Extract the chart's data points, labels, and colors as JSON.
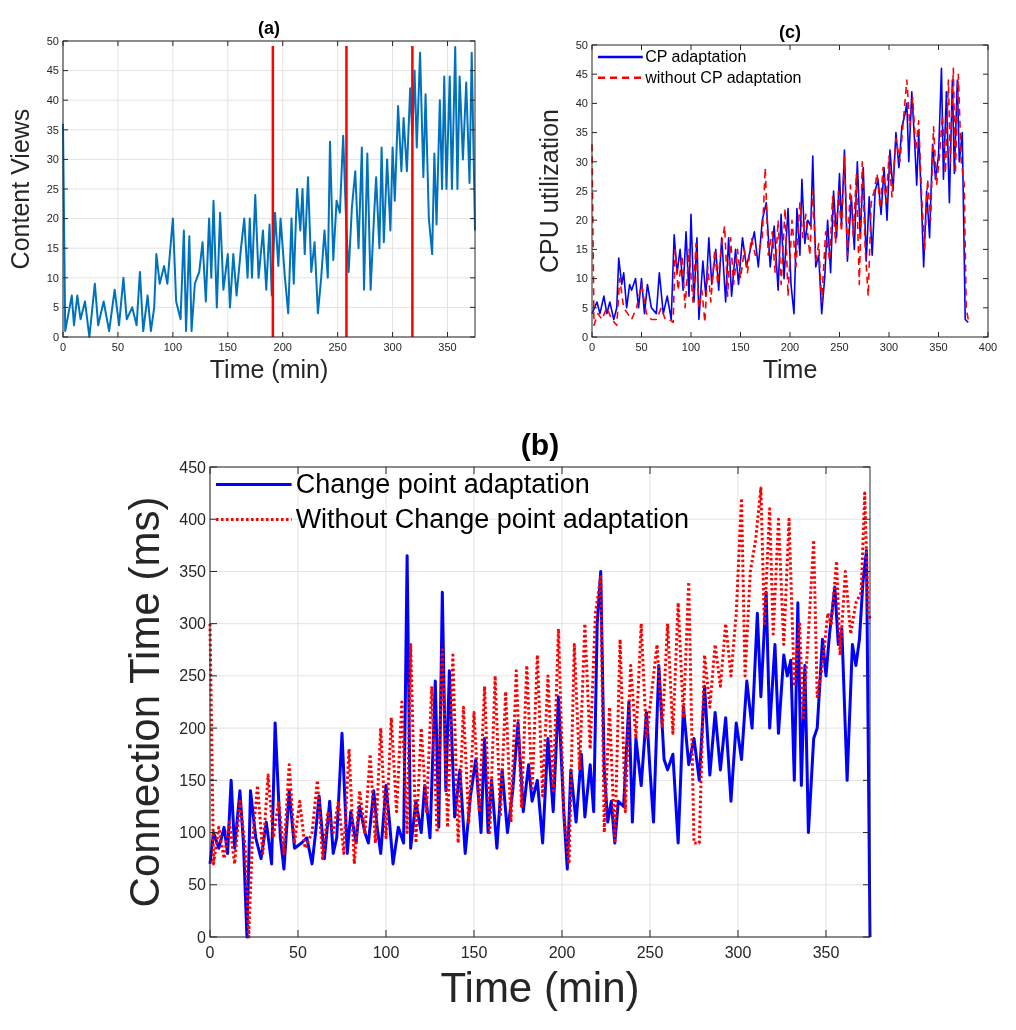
{
  "chart_data": [
    {
      "type": "line",
      "title": "(a)",
      "xlabel": "Time (min)",
      "ylabel": "Content Views",
      "xlim": [
        0,
        375
      ],
      "ylim": [
        0,
        50
      ],
      "xticks": [
        0,
        50,
        100,
        150,
        200,
        250,
        300,
        350
      ],
      "yticks": [
        0,
        5,
        10,
        15,
        20,
        25,
        30,
        35,
        40,
        45,
        50
      ],
      "grid": true,
      "legend": false,
      "ref_lines": [
        {
          "axis": "x",
          "value": 191,
          "color": "#ff0000"
        },
        {
          "axis": "x",
          "value": 258,
          "color": "#ff0000"
        },
        {
          "axis": "x",
          "value": 318,
          "color": "#ff0000"
        }
      ],
      "series": [
        {
          "color": "#0072bd",
          "line_style": "solid",
          "x": [
            0,
            2,
            5,
            8,
            10,
            13,
            16,
            20,
            24,
            29,
            32,
            37,
            42,
            47,
            51,
            55,
            58,
            63,
            67,
            70,
            73,
            77,
            80,
            83,
            85,
            88,
            92,
            95,
            100,
            103,
            107,
            110,
            112,
            115,
            117,
            120,
            124,
            127,
            130,
            133,
            135,
            137,
            140,
            143,
            146,
            150,
            152,
            155,
            158,
            162,
            165,
            168,
            170,
            172,
            175,
            178,
            182,
            185,
            188,
            190,
            193,
            196,
            198,
            202,
            205,
            208,
            210,
            213,
            216,
            218,
            220,
            223,
            226,
            229,
            232,
            235,
            238,
            241,
            243,
            246,
            249,
            252,
            255,
            258,
            260,
            263,
            266,
            269,
            272,
            274,
            277,
            280,
            283,
            285,
            288,
            290,
            292,
            295,
            298,
            300,
            302,
            305,
            308,
            310,
            313,
            316,
            318,
            320,
            322,
            325,
            328,
            330,
            333,
            336,
            338,
            340,
            343,
            345,
            347,
            349,
            352,
            354,
            357,
            359,
            361,
            364,
            367,
            370,
            372,
            375
          ],
          "values": [
            36,
            1,
            4,
            7,
            2,
            7,
            3,
            6,
            0,
            9,
            2,
            6,
            1,
            8,
            2,
            10,
            3,
            5,
            2,
            11,
            1,
            7,
            1,
            5,
            14,
            9,
            12,
            9,
            20,
            6,
            3,
            18,
            1,
            17,
            1,
            9,
            11,
            16,
            6,
            20,
            10,
            23,
            5,
            21,
            8,
            14,
            5,
            14,
            7,
            15,
            20,
            10,
            20,
            10,
            24,
            10,
            18,
            8,
            19,
            7,
            21,
            12,
            20,
            10,
            4,
            20,
            9,
            25,
            18,
            25,
            14,
            27,
            11,
            16,
            4,
            10,
            18,
            10,
            33,
            13,
            23,
            21,
            34,
            18,
            11,
            22,
            28,
            15,
            32,
            8,
            31,
            8,
            20,
            27,
            15,
            32,
            16,
            30,
            18,
            32,
            23,
            39,
            28,
            37,
            28,
            42,
            34,
            45,
            32,
            48,
            27,
            41,
            20,
            14,
            31,
            19,
            40,
            25,
            44,
            25,
            44,
            25,
            49,
            25,
            44,
            30,
            43,
            26,
            48,
            18
          ]
        }
      ]
    },
    {
      "type": "line",
      "title": "(c)",
      "xlabel": "Time",
      "ylabel": "CPU utilization",
      "xlim": [
        0,
        400
      ],
      "ylim": [
        0,
        50
      ],
      "xticks": [
        0,
        50,
        100,
        150,
        200,
        250,
        300,
        350,
        400
      ],
      "yticks": [
        0,
        5,
        10,
        15,
        20,
        25,
        30,
        35,
        40,
        45,
        50
      ],
      "grid": false,
      "legend": "top left",
      "series": [
        {
          "name": "CP adaptation",
          "color": "#0000ff",
          "line_style": "solid",
          "x": [
            0,
            5,
            8,
            12,
            15,
            18,
            22,
            25,
            27,
            30,
            32,
            35,
            38,
            40,
            44,
            47,
            50,
            53,
            56,
            60,
            65,
            68,
            72,
            76,
            80,
            83,
            86,
            89,
            92,
            95,
            98,
            100,
            103,
            106,
            108,
            112,
            115,
            118,
            121,
            125,
            128,
            131,
            135,
            138,
            141,
            145,
            148,
            152,
            156,
            160,
            164,
            168,
            172,
            176,
            180,
            184,
            188,
            191,
            194,
            198,
            201,
            204,
            207,
            210,
            212,
            215,
            218,
            221,
            223,
            226,
            229,
            232,
            235,
            238,
            241,
            244,
            247,
            250,
            252,
            255,
            258,
            262,
            265,
            268,
            271,
            274,
            277,
            280,
            283,
            286,
            289,
            292,
            295,
            298,
            301,
            304,
            307,
            310,
            313,
            316,
            318,
            320,
            323,
            326,
            328,
            330,
            333,
            335,
            338,
            341,
            344,
            347,
            350,
            353,
            355,
            358,
            361,
            364,
            366,
            369,
            371,
            374,
            377,
            380
          ],
          "values": [
            4,
            6,
            4,
            7,
            4,
            6,
            3,
            5,
            13.5,
            9,
            11,
            5,
            9,
            8,
            10,
            5,
            10,
            4,
            9,
            5,
            4,
            11,
            4,
            7,
            3,
            17.5,
            11,
            15,
            8,
            18,
            7,
            21,
            6,
            17,
            3,
            13,
            7,
            17,
            9,
            15,
            8,
            17,
            6,
            17,
            7,
            15,
            9,
            17,
            12,
            15,
            18,
            12,
            20,
            23,
            12,
            19,
            8,
            21,
            10,
            22,
            9,
            4,
            22,
            14,
            27,
            16,
            20,
            19,
            31,
            12,
            14,
            4,
            10,
            20,
            11,
            25,
            17,
            28,
            19,
            32,
            13,
            24,
            15,
            30,
            17,
            29,
            13,
            24,
            14,
            25,
            27,
            21,
            29,
            20,
            32,
            25,
            35,
            29,
            36,
            38,
            40,
            30,
            42,
            33,
            26,
            35,
            22,
            12,
            25,
            17,
            33,
            27,
            31,
            46,
            27,
            42,
            23,
            44,
            28,
            44,
            30,
            35,
            3,
            2.5
          ]
        },
        {
          "name": "without CP adaptation",
          "color": "#ff0000",
          "line_style": "dashed",
          "x": [
            0,
            2,
            6,
            10,
            15,
            20,
            25,
            28,
            32,
            36,
            40,
            45,
            50,
            55,
            60,
            65,
            70,
            74,
            78,
            82,
            84,
            87,
            91,
            94,
            98,
            102,
            105,
            108,
            111,
            114,
            117,
            120,
            124,
            127,
            131,
            134,
            137,
            140,
            143,
            147,
            150,
            154,
            157,
            161,
            165,
            169,
            172,
            175,
            178,
            182,
            185,
            188,
            191,
            195,
            198,
            202,
            206,
            210,
            213,
            216,
            220,
            223,
            226,
            229,
            232,
            236,
            240,
            243,
            246,
            249,
            252,
            255,
            258,
            261,
            264,
            267,
            270,
            273,
            276,
            279,
            282,
            285,
            288,
            291,
            294,
            297,
            300,
            303,
            307,
            311,
            315,
            318,
            321,
            324,
            327,
            330,
            333,
            336,
            339,
            342,
            345,
            348,
            351,
            354,
            357,
            360,
            362,
            365,
            367,
            370,
            373,
            376,
            378,
            380
          ],
          "values": [
            33,
            2,
            4,
            3,
            5,
            3,
            2,
            10,
            5,
            4,
            3,
            5,
            9,
            4,
            3,
            3,
            5,
            3,
            3,
            2.5,
            15,
            8,
            14,
            5,
            15,
            6,
            16,
            5,
            8,
            2.5,
            12,
            6,
            15,
            9,
            16,
            19,
            7,
            17,
            9,
            15,
            10,
            15,
            11,
            17,
            14,
            15,
            17,
            29,
            14,
            18,
            11,
            20,
            9,
            22,
            7,
            20,
            12,
            23,
            17,
            21,
            14,
            25,
            13,
            16,
            6,
            18,
            13,
            24,
            16,
            25,
            18,
            31,
            14,
            26,
            17,
            28,
            9,
            30,
            15,
            7,
            23,
            25,
            28,
            22,
            29,
            23,
            31,
            24,
            34,
            30,
            38,
            44,
            36,
            41,
            32,
            37,
            24,
            15,
            27,
            20,
            36,
            26,
            31,
            38,
            28,
            44,
            30,
            46,
            28,
            45,
            30,
            26,
            5,
            3
          ]
        }
      ]
    },
    {
      "type": "line",
      "title": "(b)",
      "xlabel": "Time (min)",
      "ylabel": "Connection Time (ms)",
      "xlim": [
        0,
        375
      ],
      "ylim": [
        0,
        450
      ],
      "xticks": [
        0,
        50,
        100,
        150,
        200,
        250,
        300,
        350
      ],
      "yticks": [
        0,
        50,
        100,
        150,
        200,
        250,
        300,
        350,
        400,
        450
      ],
      "grid": true,
      "legend": "top left",
      "series": [
        {
          "name": "Change point adaptation",
          "color": "#0000ff",
          "line_style": "solid",
          "x": [
            0,
            2,
            5,
            8,
            10,
            12,
            14,
            17,
            19,
            21,
            23,
            26,
            29,
            32,
            35,
            37,
            40,
            42,
            45,
            48,
            52,
            55,
            58,
            60,
            62,
            65,
            68,
            70,
            72,
            75,
            78,
            80,
            83,
            85,
            88,
            90,
            93,
            95,
            97,
            100,
            102,
            104,
            107,
            110,
            112,
            114,
            117,
            120,
            122,
            125,
            128,
            130,
            132,
            134,
            136,
            139,
            142,
            145,
            148,
            151,
            154,
            156,
            158,
            160,
            163,
            166,
            169,
            172,
            175,
            178,
            181,
            183,
            186,
            189,
            192,
            195,
            198,
            201,
            203,
            205,
            208,
            211,
            213,
            216,
            218,
            220,
            222,
            224,
            226,
            228,
            230,
            232,
            235,
            238,
            240,
            242,
            245,
            248,
            250,
            252,
            255,
            258,
            260,
            263,
            266,
            269,
            272,
            275,
            278,
            281,
            284,
            287,
            290,
            293,
            296,
            299,
            302,
            305,
            308,
            311,
            313,
            316,
            318,
            321,
            323,
            326,
            328,
            330,
            332,
            334,
            336,
            338,
            340,
            343,
            345,
            348,
            350,
            352,
            355,
            357,
            359,
            362,
            365,
            367,
            369,
            371,
            373,
            375
          ],
          "values": [
            70,
            100,
            85,
            105,
            80,
            150,
            85,
            140,
            90,
            0,
            140,
            95,
            75,
            110,
            70,
            205,
            95,
            65,
            140,
            85,
            90,
            95,
            70,
            100,
            135,
            75,
            130,
            80,
            95,
            195,
            80,
            120,
            90,
            125,
            100,
            90,
            140,
            105,
            80,
            145,
            110,
            70,
            105,
            90,
            365,
            85,
            130,
            100,
            145,
            95,
            245,
            105,
            330,
            140,
            255,
            115,
            160,
            80,
            135,
            170,
            100,
            190,
            100,
            150,
            85,
            160,
            100,
            140,
            205,
            120,
            165,
            130,
            150,
            90,
            190,
            120,
            230,
            120,
            65,
            160,
            110,
            175,
            115,
            165,
            120,
            300,
            350,
            160,
            110,
            130,
            90,
            130,
            125,
            225,
            110,
            190,
            145,
            215,
            160,
            110,
            260,
            170,
            160,
            175,
            90,
            220,
            165,
            190,
            150,
            240,
            155,
            215,
            160,
            210,
            130,
            205,
            170,
            245,
            200,
            310,
            230,
            330,
            200,
            280,
            195,
            270,
            250,
            265,
            150,
            320,
            145,
            260,
            100,
            190,
            200,
            285,
            250,
            290,
            335,
            280,
            295,
            150,
            280,
            260,
            285,
            340,
            370,
            0
          ]
        },
        {
          "name": "Without Change point adaptation",
          "color": "#ff0000",
          "line_style": "dotted",
          "x": [
            0,
            2,
            5,
            8,
            11,
            14,
            17,
            20,
            22,
            24,
            27,
            30,
            33,
            36,
            39,
            42,
            45,
            48,
            51,
            54,
            58,
            61,
            64,
            67,
            70,
            73,
            76,
            79,
            82,
            85,
            88,
            91,
            94,
            97,
            100,
            103,
            106,
            109,
            112,
            114,
            117,
            120,
            123,
            126,
            129,
            132,
            135,
            138,
            141,
            144,
            147,
            150,
            153,
            156,
            159,
            162,
            165,
            168,
            171,
            174,
            177,
            180,
            183,
            186,
            189,
            192,
            195,
            198,
            201,
            204,
            207,
            210,
            213,
            216,
            219,
            222,
            224,
            227,
            230,
            233,
            236,
            239,
            242,
            245,
            248,
            251,
            254,
            257,
            260,
            263,
            266,
            269,
            272,
            275,
            278,
            281,
            284,
            287,
            290,
            293,
            296,
            299,
            302,
            304,
            307,
            310,
            313,
            315,
            318,
            320,
            323,
            326,
            329,
            332,
            335,
            337,
            340,
            343,
            345,
            348,
            351,
            353,
            356,
            358,
            361,
            364,
            367,
            370,
            372,
            374,
            375
          ],
          "values": [
            300,
            70,
            105,
            75,
            110,
            70,
            130,
            85,
            0,
            90,
            145,
            80,
            155,
            95,
            130,
            80,
            165,
            90,
            130,
            85,
            100,
            150,
            75,
            120,
            100,
            130,
            80,
            180,
            70,
            140,
            100,
            175,
            90,
            200,
            95,
            210,
            120,
            225,
            100,
            280,
            90,
            200,
            120,
            240,
            100,
            275,
            105,
            270,
            90,
            220,
            110,
            215,
            120,
            240,
            100,
            250,
            115,
            235,
            110,
            255,
            125,
            260,
            140,
            270,
            135,
            250,
            140,
            295,
            120,
            70,
            280,
            160,
            300,
            180,
            310,
            345,
            100,
            220,
            90,
            285,
            120,
            260,
            190,
            300,
            190,
            235,
            280,
            200,
            300,
            195,
            320,
            210,
            340,
            90,
            90,
            270,
            220,
            280,
            240,
            300,
            250,
            310,
            420,
            250,
            350,
            380,
            430,
            300,
            410,
            290,
            400,
            280,
            400,
            240,
            300,
            210,
            290,
            380,
            230,
            260,
            310,
            300,
            360,
            270,
            350,
            290,
            320,
            330,
            425,
            310,
            305
          ]
        }
      ]
    }
  ]
}
